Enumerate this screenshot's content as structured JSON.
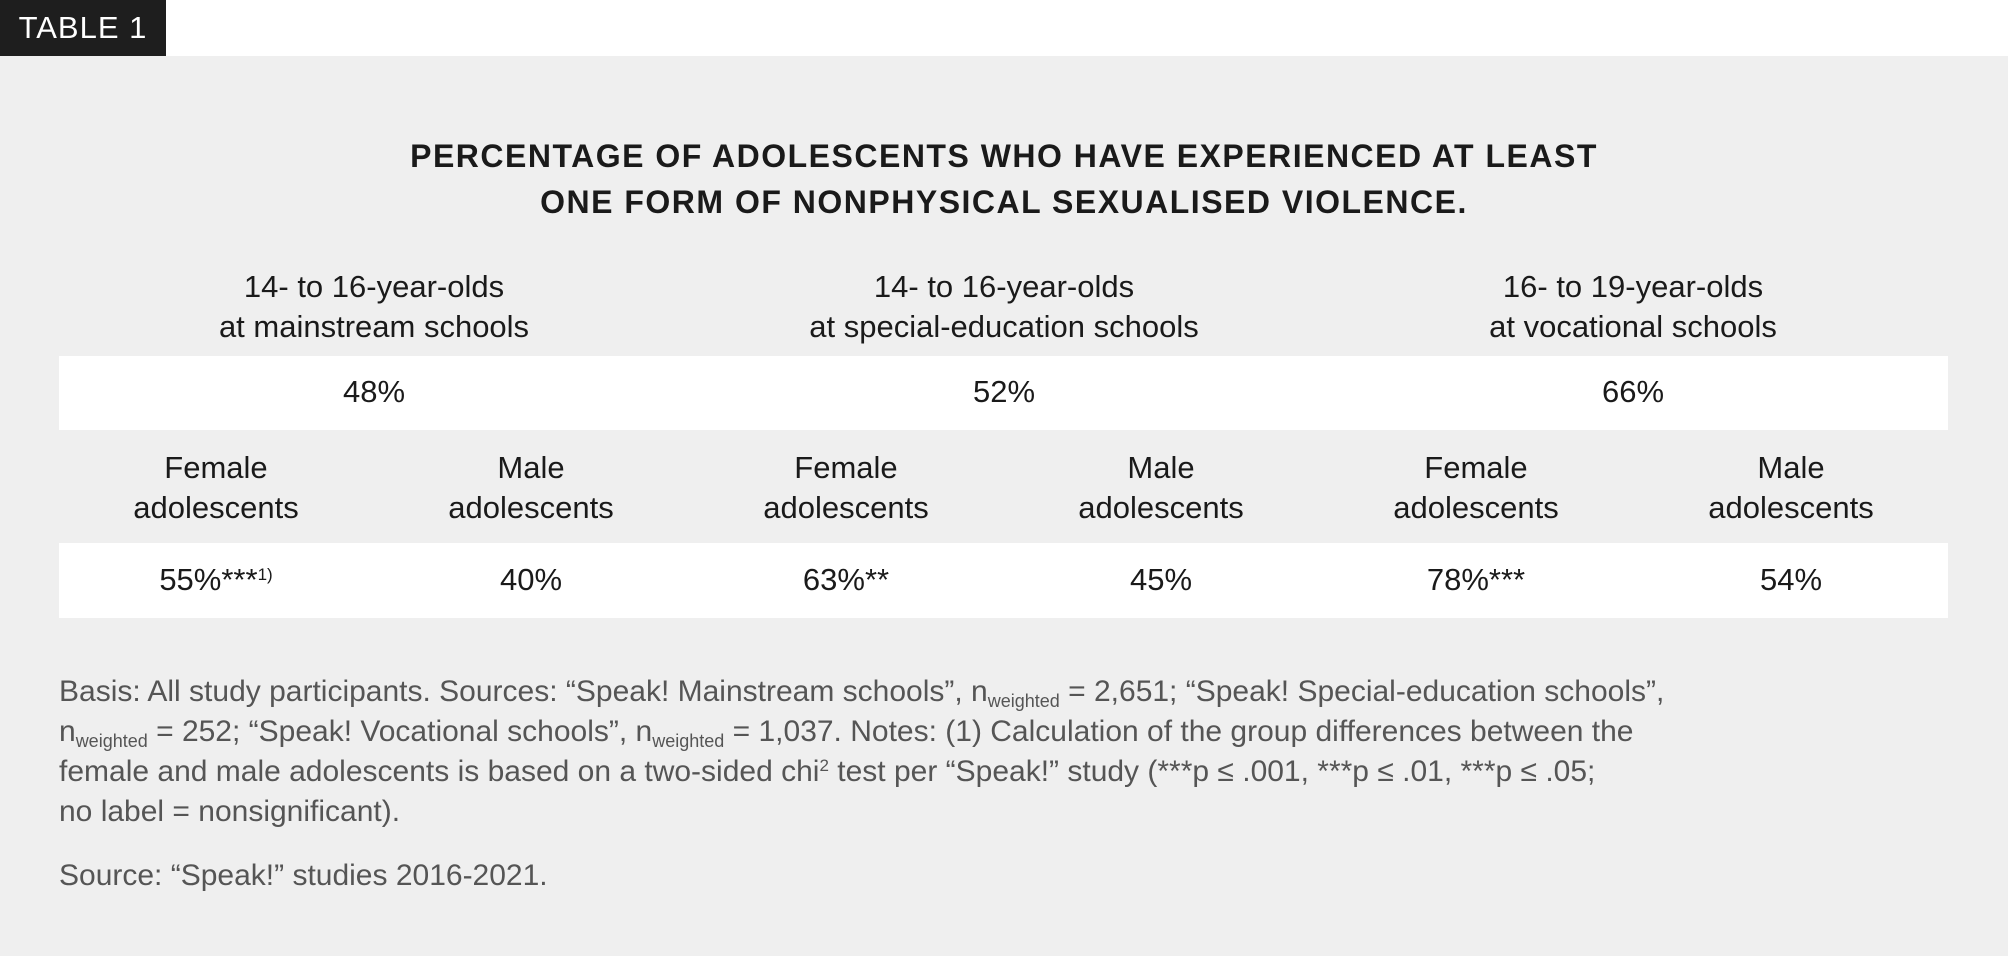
{
  "badge": "TABLE 1",
  "title": [
    "PERCENTAGE OF ADOLESCENTS WHO HAVE EXPERIENCED AT LEAST",
    "ONE FORM OF NONPHYSICAL SEXUALISED VIOLENCE."
  ],
  "table": {
    "groups": [
      {
        "label": [
          "14- to 16-year-olds",
          "at mainstream schools"
        ],
        "total": "48%"
      },
      {
        "label": [
          "14- to 16-year-olds",
          "at special-education schools"
        ],
        "total": "52%"
      },
      {
        "label": [
          "16- to 19-year-olds",
          "at vocational schools"
        ],
        "total": "66%"
      }
    ],
    "subheaders": [
      [
        "Female",
        "adolescents"
      ],
      [
        "Male",
        "adolescents"
      ],
      [
        "Female",
        "adolescents"
      ],
      [
        "Male",
        "adolescents"
      ],
      [
        "Female",
        "adolescents"
      ],
      [
        "Male",
        "adolescents"
      ]
    ],
    "cells": [
      {
        "text": "55%***",
        "note_ref": "1)"
      },
      {
        "text": "40%"
      },
      {
        "text": "63%**"
      },
      {
        "text": "45%"
      },
      {
        "text": "78%***"
      },
      {
        "text": "54%"
      }
    ]
  },
  "notes": {
    "lines": [
      [
        "Basis: All study participants. Sources: “Speak! Mainstream schools”, n",
        "weighted",
        " = 2,651; “Speak! Special-education schools”,"
      ],
      [
        "n",
        "weighted",
        " = 252; “Speak! Vocational schools”, n",
        "weighted",
        " = 1,037. Notes: (1) Calculation of the group differences between the"
      ],
      [
        "female and male adolescents is based on a two-sided chi",
        "2",
        " test per “Speak!” study (***p ≤ .001, ***p ≤ .01, ***p ≤ .05;"
      ],
      [
        "no label = nonsignificant)."
      ]
    ]
  },
  "source": "Source: “Speak!” studies 2016-2021."
}
